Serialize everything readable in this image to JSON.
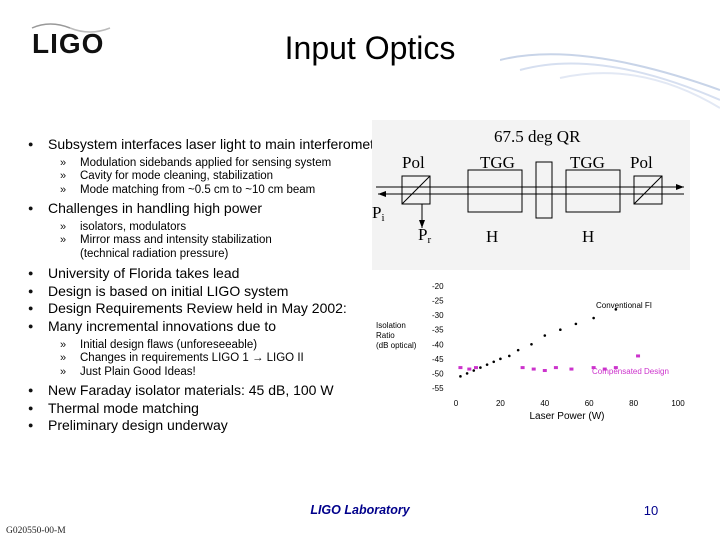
{
  "header": {
    "logo": "LIGO",
    "title": "Input Optics"
  },
  "bullets": [
    {
      "text": "Subsystem interfaces laser light to main interferometer",
      "sub": [
        "Modulation sidebands applied for sensing system",
        "Cavity for mode cleaning, stabilization",
        "Mode matching from ~0.5 cm to ~10 cm beam"
      ]
    },
    {
      "text": "Challenges in handling high power",
      "sub": [
        "isolators, modulators",
        "Mirror mass and intensity stabilization",
        "(technical radiation pressure)"
      ]
    },
    {
      "text": "University of Florida takes lead",
      "sub": []
    },
    {
      "text": "Design is based on initial LIGO system",
      "sub": []
    },
    {
      "text": "Design Requirements Review held in May 2002:",
      "sub": []
    },
    {
      "text": "Many incremental innovations due to",
      "sub": [
        "Initial design flaws (unforeseeable)",
        "Changes in requirements LIGO 1 → LIGO II",
        "Just Plain Good Ideas!"
      ]
    },
    {
      "text": "New Faraday isolator materials: 45 dB, 100 W",
      "sub": []
    },
    {
      "text": "Thermal mode matching",
      "sub": []
    },
    {
      "text": "Preliminary design underway",
      "sub": []
    }
  ],
  "diagram": {
    "top_label": "67.5 deg QR",
    "labels": [
      "Pol",
      "TGG",
      "TGG",
      "Pol",
      "P",
      "i",
      "P",
      "r",
      "H",
      "H"
    ]
  },
  "chart_data": {
    "type": "scatter",
    "xlabel": "Laser Power (W)",
    "ylabel_lines": [
      "Isolation",
      "Ratio",
      "(dB optical)"
    ],
    "xlim": [
      0,
      100
    ],
    "ylim": [
      -55,
      -20
    ],
    "xticks": [
      "0",
      "20",
      "40",
      "60",
      "80",
      "100"
    ],
    "yticks": [
      "-20",
      "-25",
      "-30",
      "-35",
      "-40",
      "-45",
      "-50",
      "-55"
    ],
    "series": [
      {
        "name": "Conventional FI",
        "color": "#000000",
        "x": [
          2,
          5,
          8,
          11,
          14,
          17,
          20,
          24,
          28,
          34,
          40,
          47,
          54,
          62,
          72
        ],
        "y": [
          -51,
          -50,
          -49,
          -48,
          -47,
          -46,
          -45,
          -44,
          -42,
          -40,
          -37,
          -35,
          -33,
          -31,
          -28
        ]
      },
      {
        "name": "Compensated Design",
        "color": "#cc33cc",
        "x": [
          2,
          6,
          9,
          30,
          35,
          40,
          45,
          52,
          62,
          67,
          72,
          82
        ],
        "y": [
          -48,
          -48.5,
          -48,
          -48,
          -48.5,
          -49,
          -48,
          -48.5,
          -48,
          -48.5,
          -48,
          -44
        ]
      }
    ]
  },
  "footer": {
    "lab": "LIGO Laboratory",
    "page": "10",
    "doc": "G020550-00-M"
  },
  "colors": {
    "swoosh": "#c8d4e8",
    "footer_text": "#00008b",
    "compensated": "#cc33cc"
  }
}
